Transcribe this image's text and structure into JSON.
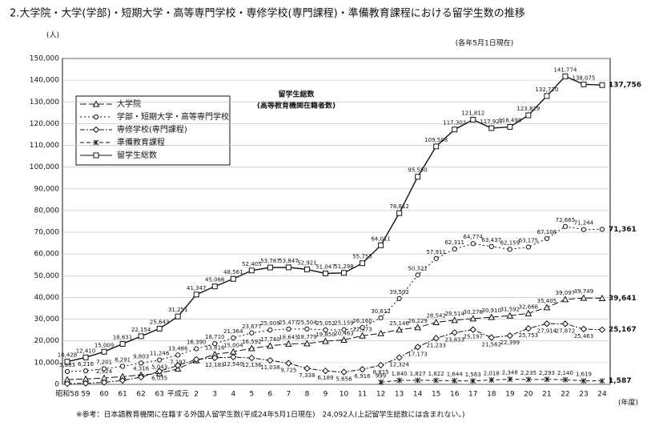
{
  "chart_data": {
    "type": "line",
    "title": "2.大学院・大学(学部)・短期大学・高等専門学校・専修学校(専門課程)・準備教育課程における留学生数の推移",
    "subtitle": "(各年5月1日現在)",
    "y_label": "(人)",
    "x_label": "(年度)",
    "annotation": [
      "留学生総数",
      "(高等教育機関在籍者数)"
    ],
    "note": "※参考：日本語教育機関に在籍する外国人留学生数(平成24年5月1日現在)　24,092人(上記留学生総数には含まれない。)",
    "categories": [
      "昭和58",
      "59",
      "60",
      "61",
      "62",
      "63",
      "平成元",
      "2",
      "3",
      "4",
      "5",
      "6",
      "7",
      "8",
      "9",
      "10",
      "11",
      "12",
      "13",
      "14",
      "15",
      "16",
      "17",
      "18",
      "19",
      "20",
      "21",
      "22",
      "23",
      "24"
    ],
    "ylim": [
      0,
      150000
    ],
    "yticks": [
      0,
      {
        "value": 10000,
        "label": "10,000"
      },
      {
        "value": 20000,
        "label": "20,000"
      },
      {
        "value": 30000,
        "label": "30,000"
      },
      {
        "value": 40000,
        "label": "40,000"
      },
      {
        "value": 50000,
        "label": "50,000"
      },
      {
        "value": 60000,
        "label": "60,000"
      },
      {
        "value": 70000,
        "label": "70,000"
      },
      {
        "value": 80000,
        "label": "80,000"
      },
      {
        "value": 90000,
        "label": "90,000"
      },
      {
        "value": 100000,
        "label": "100,000"
      },
      {
        "value": 110000,
        "label": "110,000"
      },
      {
        "value": 120000,
        "label": "120,000"
      },
      {
        "value": 130000,
        "label": "130,000"
      },
      {
        "value": 140000,
        "label": "140,000"
      },
      {
        "value": 150000,
        "label": "150,000"
      }
    ],
    "grid": true,
    "series": [
      {
        "name": "大学院",
        "color": "#111111",
        "marker": "triangle",
        "dash": "8,3",
        "label_pos": "above",
        "values": [
          2200,
          2500,
          2924,
          3600,
          4316,
          5043,
          7197,
          11000,
          13816,
          15004,
          16592,
          17740,
          18645,
          18779,
          19850,
          20463,
          22373,
          23500,
          25146,
          26229,
          28542,
          29514,
          30278,
          30910,
          31592,
          32666,
          35405,
          39097,
          39749,
          39641
        ],
        "value_labels": [
          null,
          null,
          "2,924",
          null,
          "4,316",
          "5,043",
          "7,197",
          null,
          "13,816",
          "15,004",
          "16,592",
          "17,740",
          "18,645",
          "18,779",
          "19,850",
          "20,463",
          "22,373",
          null,
          "25,146",
          "26,229",
          "28,542",
          "29,514",
          "30,278",
          "30,910",
          "31,592",
          "32,666",
          "35,405",
          "39,097",
          "39,749",
          "39,641"
        ]
      },
      {
        "name": "学部・短期大学・高等専門学校",
        "color": "#111111",
        "marker": "circle",
        "dash": "2,3",
        "label_pos": "above",
        "values": [
          5883,
          6216,
          7201,
          8291,
          9803,
          11246,
          13486,
          16390,
          18710,
          21364,
          23677,
          25009,
          25477,
          25504,
          25052,
          25159,
          26160,
          30612,
          39502,
          50321,
          57911,
          62311,
          64774,
          63437,
          62159,
          63175,
          67108,
          72665,
          71244,
          71361
        ],
        "value_labels": [
          "5,883",
          "6,216",
          "7,201",
          "8,291",
          "9,803",
          "11,246",
          "13,486",
          "16,390",
          "18,710",
          "21,364",
          "23,677",
          "25,009",
          "25,477",
          "25,504",
          "25,052",
          "25,159",
          "26,160",
          "30,612",
          "39,502",
          "50,321",
          "57,911",
          "62,311",
          "64,774",
          "63,437",
          "62,159",
          "63,175",
          "67,108",
          "72,665",
          "71,244",
          "71,361"
        ]
      },
      {
        "name": "専修学校(専門課程)",
        "color": "#111111",
        "marker": "diamond",
        "dash": "6,2,2,2",
        "label_pos": "below",
        "values": [
          300,
          500,
          900,
          1800,
          3300,
          6035,
          8700,
          11500,
          12183,
          12540,
          12136,
          11038,
          9725,
          7338,
          6189,
          5656,
          6916,
          8815,
          12324,
          17173,
          21233,
          23833,
          25197,
          21562,
          22399,
          25753,
          27914,
          27872,
          25463,
          25167
        ],
        "value_labels": [
          null,
          null,
          null,
          null,
          null,
          "6,035",
          null,
          null,
          "12,183",
          "12,540",
          "12,136",
          "11,038",
          "9,725",
          "7,338",
          "6,189",
          "5,656",
          "6,916",
          "8,815",
          "12,324",
          "17,173",
          "21,233",
          "23,833",
          "25,197",
          "21,562",
          "22,399",
          "25,753",
          "27,914",
          "27,872",
          "25,463",
          "25,167"
        ]
      },
      {
        "name": "準備教育課程",
        "color": "#111111",
        "marker": "star",
        "dash": "5,3",
        "label_pos": "above",
        "values": [
          null,
          null,
          null,
          null,
          null,
          null,
          null,
          null,
          null,
          null,
          null,
          null,
          null,
          null,
          null,
          null,
          null,
          999,
          1840,
          1827,
          1822,
          1644,
          1563,
          2018,
          2348,
          2235,
          2293,
          2140,
          1619,
          1587
        ],
        "value_labels": [
          null,
          null,
          null,
          null,
          null,
          null,
          null,
          null,
          null,
          null,
          null,
          null,
          null,
          null,
          null,
          null,
          null,
          "999",
          "1,840",
          "1,827",
          "1,822",
          "1,644",
          "1,563",
          "2,018",
          "2,348",
          "2,235",
          "2,293",
          "2,140",
          "1,619",
          "1,587"
        ]
      },
      {
        "name": "留学生総数",
        "color": "#111111",
        "marker": "square",
        "dash": "",
        "label_pos": "above",
        "values": [
          10428,
          12410,
          15009,
          18631,
          22154,
          25643,
          31251,
          41347,
          45066,
          48561,
          52405,
          53787,
          53847,
          52921,
          51047,
          51298,
          55755,
          64011,
          78812,
          95550,
          109508,
          117302,
          121812,
          117927,
          118498,
          123829,
          132720,
          141774,
          138075,
          137756
        ],
        "value_labels": [
          "10,428",
          "12,410",
          "15,009",
          "18,631",
          "22,154",
          "25,643",
          "31,251",
          "41,347",
          "45,066",
          "48,561",
          "52,405",
          "53,787",
          "53,847",
          "52,921",
          "51,047",
          "51,298",
          "55,755",
          "64,011",
          "78,812",
          "95,550",
          "109,508",
          "117,302",
          "121,812",
          "117,927",
          "118,498",
          "123,829",
          "132,720",
          "141,774",
          "138,075",
          "137,756"
        ]
      }
    ]
  }
}
